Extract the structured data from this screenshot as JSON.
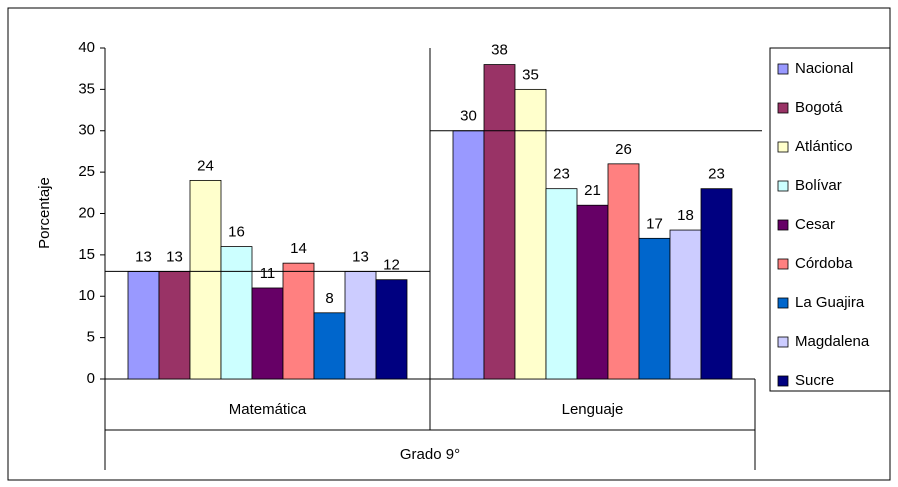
{
  "chart_data": {
    "type": "bar",
    "y_label": "Porcentaje",
    "categories": [
      "Matemática",
      "Lenguaje"
    ],
    "group_label": "Grado 9°",
    "series": [
      {
        "name": "Nacional",
        "color": "#9999ff",
        "values": [
          13,
          30
        ]
      },
      {
        "name": "Bogotá",
        "color": "#993366",
        "values": [
          13,
          38
        ]
      },
      {
        "name": "Atlántico",
        "color": "#ffffcc",
        "values": [
          24,
          35
        ]
      },
      {
        "name": "Bolívar",
        "color": "#ccffff",
        "values": [
          16,
          23
        ]
      },
      {
        "name": "Cesar",
        "color": "#660066",
        "values": [
          11,
          21
        ]
      },
      {
        "name": "Córdoba",
        "color": "#ff8080",
        "values": [
          14,
          26
        ]
      },
      {
        "name": "La Guajira",
        "color": "#0066cc",
        "values": [
          8,
          17
        ]
      },
      {
        "name": "Magdalena",
        "color": "#ccccff",
        "values": [
          13,
          18
        ]
      },
      {
        "name": "Sucre",
        "color": "#000080",
        "values": [
          12,
          23
        ]
      }
    ],
    "ylim": [
      0,
      40
    ],
    "yticks": [
      0,
      5,
      10,
      15,
      20,
      25,
      30,
      35,
      40
    ],
    "grid": false,
    "legend": "right"
  }
}
